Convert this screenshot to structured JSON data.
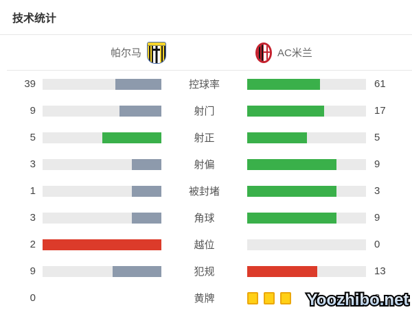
{
  "title": "技术统计",
  "teams": {
    "home": {
      "name": "帕尔马"
    },
    "away": {
      "name": "AC米兰"
    }
  },
  "colors": {
    "green": "#3ab04a",
    "slate": "#8d9aac",
    "red": "#dc3b2a",
    "track": "#eaeaea",
    "card_fill": "#ffd016",
    "card_border": "#eba70b"
  },
  "stats": [
    {
      "label": "控球率",
      "home": {
        "value": "39",
        "pct": 39,
        "color": "slate"
      },
      "away": {
        "value": "61",
        "pct": 61,
        "color": "green"
      }
    },
    {
      "label": "射门",
      "home": {
        "value": "9",
        "pct": 35,
        "color": "slate"
      },
      "away": {
        "value": "17",
        "pct": 65,
        "color": "green"
      }
    },
    {
      "label": "射正",
      "home": {
        "value": "5",
        "pct": 50,
        "color": "green"
      },
      "away": {
        "value": "5",
        "pct": 50,
        "color": "green"
      }
    },
    {
      "label": "射偏",
      "home": {
        "value": "3",
        "pct": 25,
        "color": "slate"
      },
      "away": {
        "value": "9",
        "pct": 75,
        "color": "green"
      }
    },
    {
      "label": "被封堵",
      "home": {
        "value": "1",
        "pct": 25,
        "color": "slate"
      },
      "away": {
        "value": "3",
        "pct": 75,
        "color": "green"
      }
    },
    {
      "label": "角球",
      "home": {
        "value": "3",
        "pct": 25,
        "color": "slate"
      },
      "away": {
        "value": "9",
        "pct": 75,
        "color": "green"
      }
    },
    {
      "label": "越位",
      "home": {
        "value": "2",
        "pct": 100,
        "color": "red"
      },
      "away": {
        "value": "0",
        "pct": 0,
        "color": "green"
      }
    },
    {
      "label": "犯规",
      "home": {
        "value": "9",
        "pct": 41,
        "color": "slate"
      },
      "away": {
        "value": "13",
        "pct": 59,
        "color": "red"
      }
    },
    {
      "label": "黄牌",
      "home": {
        "value": "0",
        "bar": false
      },
      "away": {
        "value": "3",
        "cards": 3
      }
    }
  ],
  "chart_data": {
    "type": "bar",
    "title": "技术统计",
    "layout": "mirrored horizontal comparison bars, category labels centered",
    "categories": [
      "控球率",
      "射门",
      "射正",
      "射偏",
      "被封堵",
      "角球",
      "越位",
      "犯规",
      "黄牌"
    ],
    "series": [
      {
        "name": "帕尔马",
        "values": [
          39,
          9,
          5,
          3,
          1,
          3,
          2,
          9,
          0
        ]
      },
      {
        "name": "AC米兰",
        "values": [
          61,
          17,
          5,
          9,
          3,
          9,
          0,
          13,
          3
        ]
      }
    ]
  },
  "watermark": "Yoozhibo.net"
}
